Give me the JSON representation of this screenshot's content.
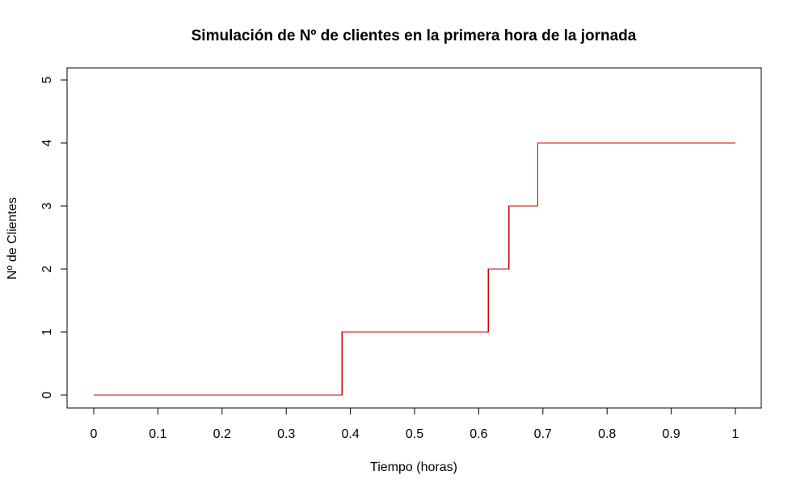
{
  "chart_data": {
    "type": "line",
    "step": true,
    "title": "Simulación de Nº de clientes en la primera hora de la jornada",
    "xlabel": "Tiempo (horas)",
    "ylabel": "Nº de Clientes",
    "xlim": [
      0,
      1
    ],
    "ylim": [
      0,
      5
    ],
    "xticks": [
      0,
      0.1,
      0.2,
      0.3,
      0.4,
      0.5,
      0.6,
      0.7,
      0.8,
      0.9,
      1
    ],
    "xtick_labels": [
      "0",
      "0.1",
      "0.2",
      "0.3",
      "0.4",
      "0.5",
      "0.6",
      "0.7",
      "0.8",
      "0.9",
      "1"
    ],
    "yticks": [
      0,
      1,
      2,
      3,
      4,
      5
    ],
    "ytick_labels": [
      "0",
      "1",
      "2",
      "3",
      "4",
      "5"
    ],
    "grid": false,
    "series": [
      {
        "color": "#cc0000",
        "x": [
          0,
          0.387,
          0.615,
          0.647,
          0.692,
          1
        ],
        "y": [
          0,
          1,
          2,
          3,
          4,
          4
        ]
      }
    ]
  }
}
